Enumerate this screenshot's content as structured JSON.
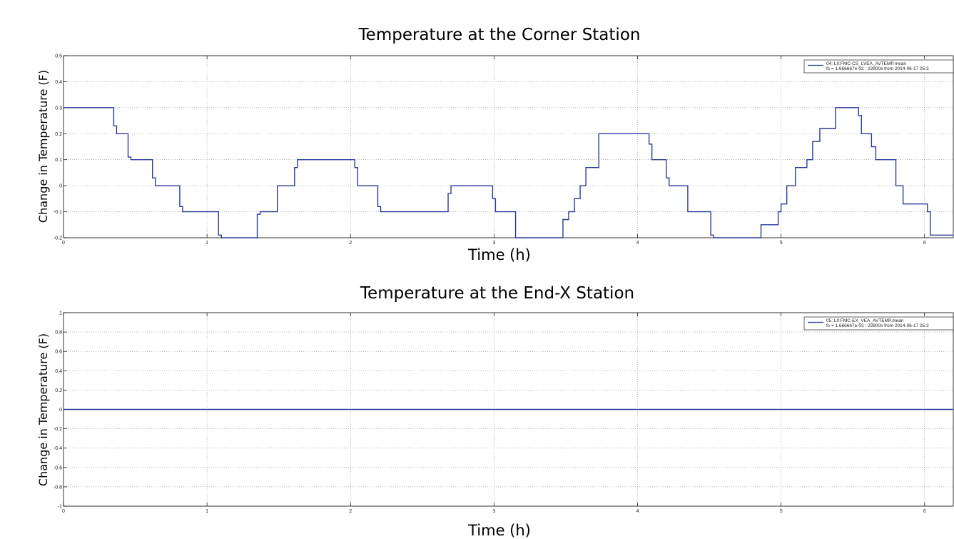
{
  "chart_data": [
    {
      "type": "line",
      "title": "Temperature at the Corner Station",
      "xlabel": "Time (h)",
      "ylabel": "Change in Temperature (F)",
      "xlim": [
        0,
        6.2
      ],
      "ylim": [
        -0.2,
        0.5
      ],
      "xticks": [
        "0",
        "1",
        "2",
        "3",
        "4",
        "5",
        "6"
      ],
      "yticks": [
        "-0.2",
        "-0.1",
        "0",
        "0.1",
        "0.2",
        "0.3",
        "0.4",
        "0.5"
      ],
      "grid": true,
      "legend_position": "top-right",
      "series": [
        {
          "name": "04: L0:FMC-CS_LVEA_AVTEMP.mean",
          "legend_sub": "fs = 1.666667e-02 : 22800s from 2014-06-17 05:3",
          "color": "#2b3a9a",
          "step": true,
          "x": [
            0,
            0.35,
            0.37,
            0.45,
            0.47,
            0.62,
            0.64,
            0.81,
            0.83,
            1.08,
            1.1,
            1.35,
            1.37,
            1.49,
            1.61,
            1.63,
            2.03,
            2.05,
            2.19,
            2.21,
            2.68,
            2.7,
            2.99,
            3.01,
            3.15,
            3.17,
            3.48,
            3.52,
            3.56,
            3.6,
            3.64,
            3.73,
            4.08,
            4.1,
            4.2,
            4.22,
            4.35,
            4.51,
            4.53,
            4.84,
            4.86,
            4.98,
            5.0,
            5.04,
            5.1,
            5.18,
            5.22,
            5.27,
            5.38,
            5.48,
            5.54,
            5.56,
            5.63,
            5.66,
            5.8,
            5.85,
            6.02,
            6.04,
            6.2
          ],
          "y": [
            0.3,
            0.23,
            0.2,
            0.11,
            0.1,
            0.03,
            0.0,
            -0.08,
            -0.1,
            -0.19,
            -0.2,
            -0.11,
            -0.1,
            0.0,
            0.07,
            0.1,
            0.07,
            0.0,
            -0.08,
            -0.1,
            -0.03,
            0.0,
            -0.05,
            -0.1,
            -0.2,
            -0.2,
            -0.13,
            -0.1,
            -0.05,
            0.0,
            0.07,
            0.2,
            0.16,
            0.1,
            0.03,
            0.0,
            -0.1,
            -0.19,
            -0.2,
            -0.2,
            -0.15,
            -0.1,
            -0.07,
            0.0,
            0.07,
            0.1,
            0.17,
            0.22,
            0.3,
            0.3,
            0.27,
            0.2,
            0.15,
            0.1,
            0.0,
            -0.07,
            -0.1,
            -0.19,
            -0.19
          ]
        }
      ]
    },
    {
      "type": "line",
      "title": "Temperature at the End-X Station",
      "xlabel": "Time (h)",
      "ylabel": "Change in Temperature (F)",
      "xlim": [
        0,
        6.2
      ],
      "ylim": [
        -1,
        1
      ],
      "xticks": [
        "0",
        "1",
        "2",
        "3",
        "4",
        "5",
        "6"
      ],
      "yticks": [
        "-1",
        "-0.8",
        "-0.6",
        "-0.4",
        "-0.2",
        "0",
        "0.2",
        "0.4",
        "0.6",
        "0.8",
        "1"
      ],
      "grid": true,
      "legend_position": "top-right",
      "series": [
        {
          "name": "05: L0:FMC-EX_VEA_AVTEMP.mean",
          "legend_sub": "fs = 1.666667e-02 : 22800s from 2014-06-17 05:3",
          "color": "#2b3a9a",
          "step": false,
          "x": [
            0,
            6.2
          ],
          "y": [
            0,
            0
          ]
        }
      ]
    }
  ]
}
